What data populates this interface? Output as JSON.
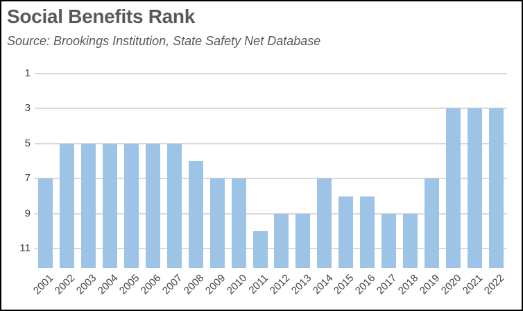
{
  "chart_data": {
    "type": "bar",
    "title": "Social Benefits Rank",
    "source_note": "Source:  Brookings Institution, State Safety Net Database",
    "categories": [
      "2001",
      "2002",
      "2003",
      "2004",
      "2005",
      "2006",
      "2007",
      "2008",
      "2009",
      "2010",
      "2011",
      "2012",
      "2013",
      "2014",
      "2015",
      "2016",
      "2017",
      "2018",
      "2019",
      "2020",
      "2021",
      "2022"
    ],
    "values": [
      7,
      5,
      5,
      5,
      5,
      5,
      5,
      6,
      7,
      7,
      10,
      9,
      9,
      7,
      8,
      8,
      9,
      9,
      7,
      3,
      3,
      3
    ],
    "xlabel": "",
    "ylabel": "",
    "y_ticks": [
      1,
      3,
      5,
      7,
      9,
      11
    ],
    "ylim": [
      1,
      12.1
    ],
    "y_axis_reversed": true,
    "grid": true,
    "legend": false,
    "bar_color": "#9DC3E6",
    "gridline_color": "#D9D9D9",
    "title_color": "#595959",
    "tick_color": "#404040"
  }
}
